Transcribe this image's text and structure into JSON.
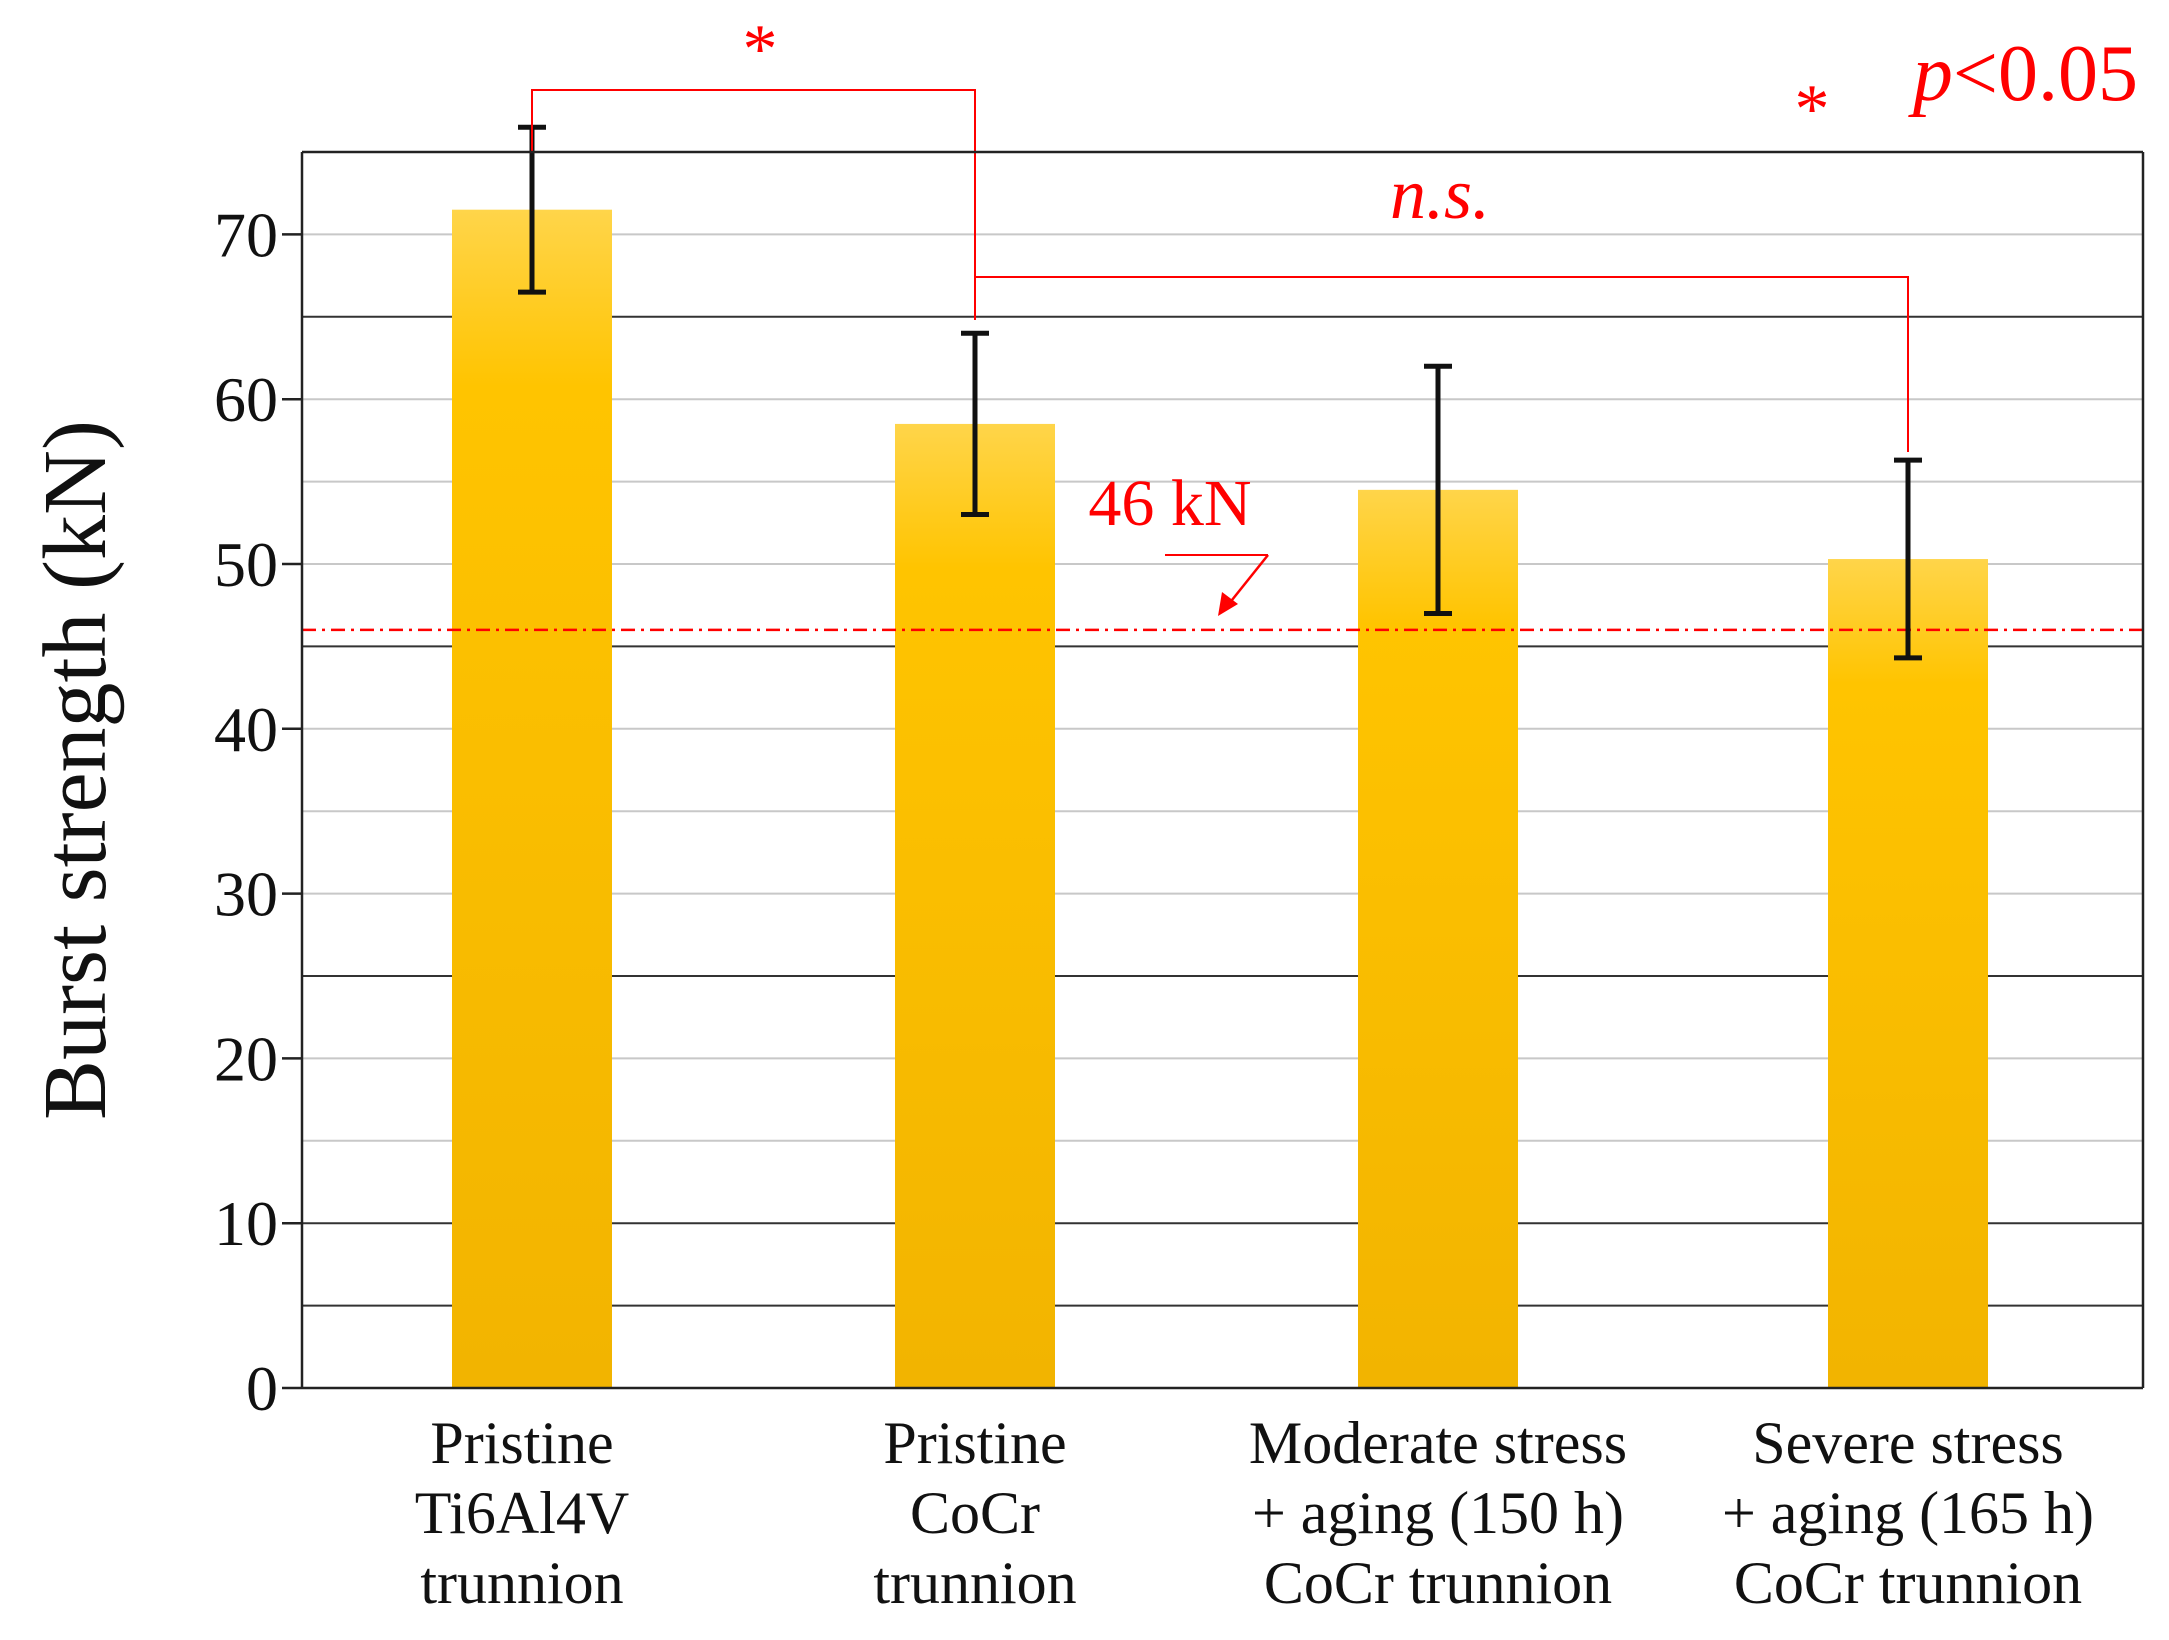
{
  "chart_data": {
    "type": "bar",
    "ylabel": "Burst strength (kN)",
    "ylim": [
      0,
      75
    ],
    "yticks": [
      0,
      10,
      20,
      30,
      40,
      50,
      60,
      70
    ],
    "categories": [
      [
        "Pristine",
        "Ti6Al4V",
        "trunnion"
      ],
      [
        "Pristine",
        "CoCr",
        "trunnion"
      ],
      [
        "Moderate stress",
        "+ aging (150 h)",
        "CoCr trunnion"
      ],
      [
        "Severe stress",
        "+ aging (165 h)",
        "CoCr trunnion"
      ]
    ],
    "values": [
      71.5,
      58.5,
      54.5,
      50.3
    ],
    "errors": [
      5.0,
      5.5,
      7.5,
      6.0
    ],
    "reference_line": {
      "value": 46,
      "label": "46 kN"
    },
    "annotations": {
      "significance": [
        {
          "from": 0,
          "to": 1,
          "label": "*"
        },
        {
          "from": 1,
          "to": 3,
          "label": "n.s."
        }
      ],
      "legend": {
        "star": "*",
        "text": "p<0.05"
      }
    },
    "colors": {
      "bar_top": "#ffd54a",
      "bar_mid": "#ffc400",
      "bar_bottom": "#f2b400",
      "annotation": "#ff0000",
      "error_bar": "#111111"
    }
  }
}
